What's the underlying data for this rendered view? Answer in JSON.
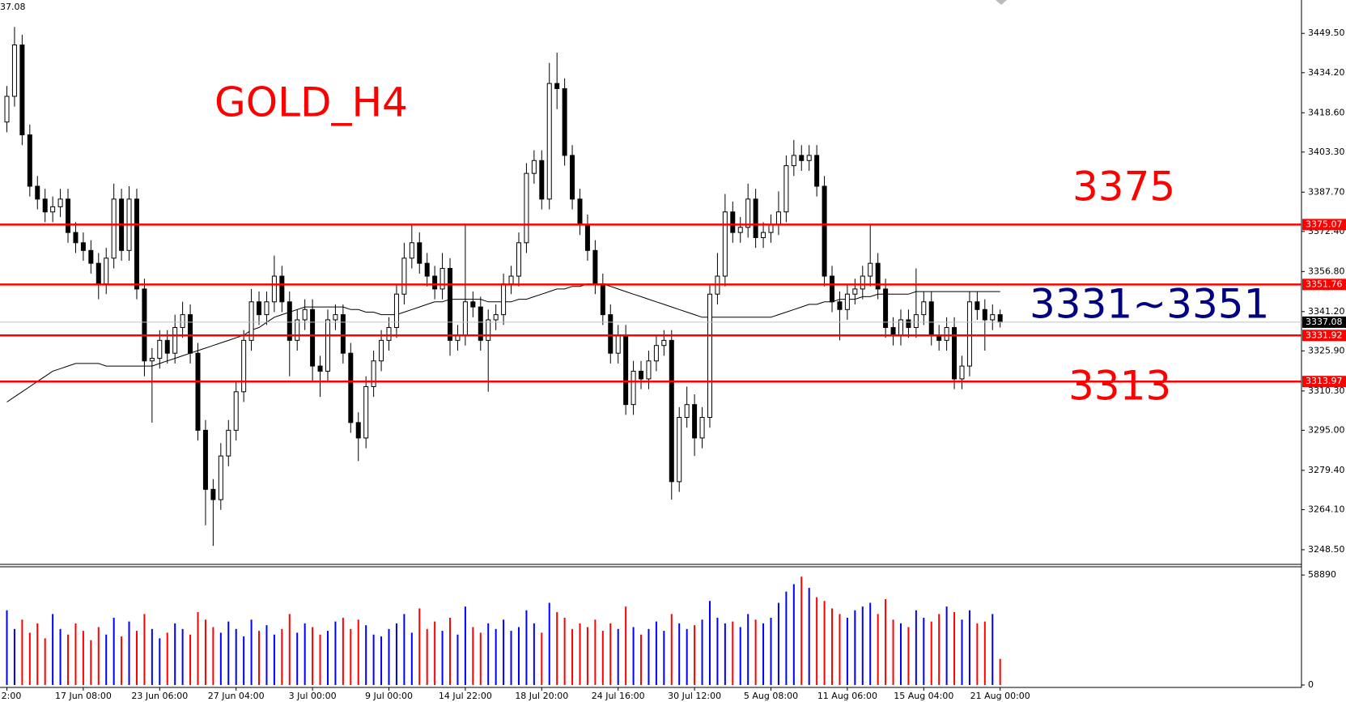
{
  "chart_data": [
    {
      "type": "candlestick",
      "title": "GOLD_H4",
      "corner_label": "37.08",
      "categories": [
        "2:00",
        null,
        null,
        null,
        null,
        null,
        null,
        null,
        null,
        null,
        "17 Jun 08:00",
        null,
        null,
        null,
        null,
        null,
        null,
        null,
        null,
        null,
        "23 Jun 06:00",
        null,
        null,
        null,
        null,
        null,
        null,
        null,
        null,
        null,
        "27 Jun 04:00",
        null,
        null,
        null,
        null,
        null,
        null,
        null,
        null,
        null,
        "3 Jul 00:00",
        null,
        null,
        null,
        null,
        null,
        null,
        null,
        null,
        null,
        "9 Jul 00:00",
        null,
        null,
        null,
        null,
        null,
        null,
        null,
        null,
        null,
        "14 Jul 22:00",
        null,
        null,
        null,
        null,
        null,
        null,
        null,
        null,
        null,
        "18 Jul 20:00",
        null,
        null,
        null,
        null,
        null,
        null,
        null,
        null,
        null,
        "24 Jul 16:00",
        null,
        null,
        null,
        null,
        null,
        null,
        null,
        null,
        null,
        "30 Jul 12:00",
        null,
        null,
        null,
        null,
        null,
        null,
        null,
        null,
        null,
        "5 Aug 08:00",
        null,
        null,
        null,
        null,
        null,
        null,
        null,
        null,
        null,
        "11 Aug 06:00",
        null,
        null,
        null,
        null,
        null,
        null,
        null,
        null,
        null,
        "15 Aug 04:00",
        null,
        null,
        null,
        null,
        null,
        null,
        null,
        null,
        null,
        "21 Aug 00:00"
      ],
      "open": [
        3415,
        3425,
        3445,
        3410,
        3390,
        3385,
        3380,
        3382,
        3385,
        3372,
        3368,
        3365,
        3360,
        3352,
        3362,
        3385,
        3365,
        3385,
        3350,
        3322,
        3323,
        3330,
        3325,
        3335,
        3340,
        3325,
        3295,
        3272,
        3268,
        3285,
        3295,
        3310,
        3330,
        3345,
        3340,
        3345,
        3355,
        3345,
        3330,
        3338,
        3342,
        3320,
        3318,
        3338,
        3340,
        3325,
        3298,
        3292,
        3312,
        3322,
        3330,
        3335,
        3348,
        3362,
        3368,
        3360,
        3355,
        3350,
        3358,
        3330,
        3332,
        3345,
        3343,
        3330,
        3338,
        3340,
        3352,
        3355,
        3368,
        3395,
        3400,
        3385,
        3430,
        3428,
        3402,
        3385,
        3375,
        3365,
        3352,
        3340,
        3325,
        3332,
        3305,
        3318,
        3315,
        3322,
        3328,
        3330,
        3275,
        3300,
        3305,
        3292,
        3300,
        3348,
        3355,
        3380,
        3372,
        3374,
        3385,
        3370,
        3372,
        3375,
        3380,
        3398,
        3402,
        3400,
        3402,
        3390,
        3355,
        3345,
        3342,
        3348,
        3350,
        3355,
        3360,
        3350,
        3335,
        3332,
        3338,
        3335,
        3340,
        3345,
        3332,
        3330,
        3335,
        3315,
        3320,
        3345,
        3342,
        3338,
        3340
      ],
      "high": [
        3429,
        3452,
        3449,
        3414,
        3394,
        3389,
        3386,
        3389,
        3389,
        3376,
        3372,
        3369,
        3364,
        3366,
        3391,
        3389,
        3390,
        3389,
        3354,
        3327,
        3334,
        3334,
        3340,
        3345,
        3344,
        3329,
        3299,
        3276,
        3290,
        3299,
        3314,
        3334,
        3350,
        3349,
        3349,
        3363,
        3359,
        3349,
        3342,
        3346,
        3346,
        3324,
        3342,
        3344,
        3344,
        3329,
        3302,
        3316,
        3326,
        3334,
        3339,
        3352,
        3368,
        3375,
        3372,
        3364,
        3359,
        3364,
        3362,
        3336,
        3375,
        3349,
        3347,
        3342,
        3344,
        3356,
        3359,
        3372,
        3399,
        3404,
        3404,
        3438,
        3442,
        3432,
        3406,
        3389,
        3379,
        3369,
        3356,
        3344,
        3336,
        3336,
        3322,
        3322,
        3326,
        3332,
        3334,
        3334,
        3304,
        3312,
        3309,
        3304,
        3352,
        3364,
        3387,
        3384,
        3378,
        3391,
        3389,
        3376,
        3379,
        3388,
        3402,
        3408,
        3406,
        3406,
        3406,
        3394,
        3359,
        3349,
        3352,
        3354,
        3359,
        3375,
        3364,
        3354,
        3339,
        3342,
        3342,
        3358,
        3349,
        3349,
        3336,
        3339,
        3339,
        3324,
        3349,
        3349,
        3346,
        3344,
        3342
      ],
      "low": [
        3411,
        3421,
        3406,
        3386,
        3381,
        3376,
        3376,
        3378,
        3368,
        3364,
        3361,
        3356,
        3346,
        3348,
        3358,
        3361,
        3361,
        3346,
        3316,
        3298,
        3319,
        3321,
        3321,
        3331,
        3321,
        3291,
        3258,
        3250,
        3264,
        3281,
        3291,
        3306,
        3326,
        3336,
        3336,
        3341,
        3341,
        3316,
        3326,
        3334,
        3314,
        3308,
        3314,
        3334,
        3321,
        3294,
        3283,
        3288,
        3308,
        3318,
        3326,
        3331,
        3344,
        3358,
        3356,
        3351,
        3346,
        3346,
        3324,
        3326,
        3328,
        3339,
        3326,
        3310,
        3334,
        3336,
        3348,
        3351,
        3364,
        3391,
        3381,
        3381,
        3420,
        3398,
        3381,
        3371,
        3361,
        3348,
        3336,
        3321,
        3321,
        3301,
        3301,
        3311,
        3311,
        3318,
        3324,
        3268,
        3271,
        3296,
        3285,
        3288,
        3296,
        3344,
        3351,
        3368,
        3368,
        3370,
        3366,
        3366,
        3368,
        3371,
        3376,
        3394,
        3396,
        3396,
        3386,
        3351,
        3341,
        3330,
        3338,
        3344,
        3346,
        3351,
        3346,
        3331,
        3328,
        3328,
        3331,
        3331,
        3336,
        3328,
        3326,
        3326,
        3311,
        3311,
        3316,
        3338,
        3326,
        3334,
        3335
      ],
      "close": [
        3425,
        3445,
        3410,
        3390,
        3385,
        3380,
        3382,
        3385,
        3372,
        3368,
        3365,
        3360,
        3352,
        3362,
        3385,
        3365,
        3385,
        3350,
        3322,
        3323,
        3330,
        3325,
        3335,
        3340,
        3325,
        3295,
        3272,
        3268,
        3285,
        3295,
        3310,
        3330,
        3345,
        3340,
        3345,
        3355,
        3345,
        3330,
        3338,
        3342,
        3320,
        3318,
        3338,
        3340,
        3325,
        3298,
        3292,
        3312,
        3322,
        3330,
        3335,
        3348,
        3362,
        3368,
        3360,
        3355,
        3350,
        3358,
        3330,
        3332,
        3345,
        3343,
        3330,
        3338,
        3340,
        3352,
        3355,
        3368,
        3395,
        3400,
        3385,
        3430,
        3428,
        3402,
        3385,
        3375,
        3365,
        3352,
        3340,
        3325,
        3332,
        3305,
        3318,
        3315,
        3322,
        3328,
        3330,
        3275,
        3300,
        3305,
        3292,
        3300,
        3348,
        3355,
        3380,
        3372,
        3374,
        3385,
        3370,
        3372,
        3375,
        3380,
        3398,
        3402,
        3400,
        3402,
        3390,
        3355,
        3345,
        3342,
        3348,
        3350,
        3355,
        3360,
        3350,
        3335,
        3332,
        3338,
        3335,
        3340,
        3345,
        3332,
        3330,
        3335,
        3315,
        3320,
        3345,
        3342,
        3338,
        3340,
        3337.08
      ],
      "up_color": "#ffffff",
      "down_color": "#000000",
      "candle_outline": "#000000",
      "moving_average": {
        "color": "#000000",
        "values": [
          3306,
          3308,
          3310,
          3312,
          3314,
          3316,
          3318,
          3319,
          3320,
          3321,
          3321,
          3321,
          3321,
          3320,
          3320,
          3320,
          3320,
          3320,
          3320,
          3320,
          3321,
          3322,
          3323,
          3324,
          3325,
          3326,
          3327,
          3328,
          3329,
          3330,
          3331,
          3332,
          3334,
          3335,
          3337,
          3339,
          3340,
          3341,
          3342,
          3343,
          3343,
          3343,
          3343,
          3343,
          3343,
          3342,
          3342,
          3341,
          3341,
          3340,
          3340,
          3340,
          3341,
          3342,
          3343,
          3344,
          3345,
          3345,
          3346,
          3346,
          3346,
          3346,
          3346,
          3345,
          3345,
          3345,
          3345,
          3346,
          3346,
          3347,
          3348,
          3349,
          3350,
          3350,
          3351,
          3351,
          3352,
          3352,
          3352,
          3351,
          3350,
          3349,
          3348,
          3347,
          3346,
          3345,
          3344,
          3343,
          3342,
          3341,
          3340,
          3339,
          3339,
          3339,
          3339,
          3339,
          3339,
          3339,
          3339,
          3339,
          3339,
          3340,
          3341,
          3342,
          3343,
          3344,
          3344,
          3345,
          3345,
          3346,
          3346,
          3346,
          3347,
          3347,
          3348,
          3348,
          3348,
          3348,
          3348,
          3349,
          3349,
          3349,
          3349,
          3349,
          3349,
          3349,
          3349,
          3349,
          3349,
          3349,
          3349
        ]
      },
      "levels": [
        3375.07,
        3351.76,
        3331.92,
        3313.97
      ],
      "level_color": "#ff0000",
      "last_price": 3337.08,
      "last_price_color": "#000000",
      "annotations": [
        {
          "text": "3375",
          "color": "#ff0000"
        },
        {
          "text": "3331~3351",
          "color": "#000080"
        },
        {
          "text": "3313",
          "color": "#ff0000"
        }
      ],
      "title_color": "#ff0000",
      "ylim": [
        3242.8,
        3462.5
      ],
      "yticks": [
        {
          "value": 3449.5,
          "label": "3449.50"
        },
        {
          "value": 3434.2,
          "label": "3434.20"
        },
        {
          "value": 3418.6,
          "label": "3418.60"
        },
        {
          "value": 3403.3,
          "label": "3403.30"
        },
        {
          "value": 3387.7,
          "label": "3387.70"
        },
        {
          "value": 3372.4,
          "label": "3372.40"
        },
        {
          "value": 3356.8,
          "label": "3356.80"
        },
        {
          "value": 3341.2,
          "label": "3341.20"
        },
        {
          "value": 3325.9,
          "label": "3325.90"
        },
        {
          "value": 3310.3,
          "label": "3310.30"
        },
        {
          "value": 3295,
          "label": "3295.00"
        },
        {
          "value": 3279.4,
          "label": "3279.40"
        },
        {
          "value": 3264.1,
          "label": "3264.10"
        },
        {
          "value": 3248.5,
          "label": "3248.50"
        }
      ]
    },
    {
      "type": "bar",
      "values": [
        40000,
        30000,
        35000,
        28000,
        33000,
        25000,
        38000,
        30000,
        27000,
        33000,
        29000,
        24000,
        31000,
        27000,
        36000,
        26000,
        34000,
        29000,
        38000,
        30000,
        25000,
        28000,
        33000,
        30000,
        27000,
        39000,
        35000,
        31000,
        28000,
        34000,
        30000,
        26000,
        35000,
        29000,
        32000,
        27000,
        30000,
        38000,
        28000,
        33000,
        31000,
        27000,
        29000,
        34000,
        36000,
        30000,
        35000,
        32000,
        27000,
        26000,
        30000,
        33000,
        38000,
        28000,
        41000,
        30000,
        34000,
        29000,
        36000,
        27000,
        42000,
        31000,
        28000,
        33000,
        30000,
        35000,
        29000,
        31000,
        40000,
        33000,
        28000,
        44000,
        39000,
        36000,
        30000,
        33000,
        31000,
        35000,
        29000,
        33000,
        30000,
        42000,
        31000,
        27000,
        30000,
        34000,
        29000,
        38000,
        33000,
        30000,
        32000,
        35000,
        45000,
        36000,
        33000,
        34000,
        31000,
        38000,
        35000,
        33000,
        36000,
        44000,
        50000,
        54000,
        58000,
        52000,
        47000,
        45000,
        41000,
        38000,
        36000,
        40000,
        42000,
        44000,
        38000,
        46000,
        35000,
        33000,
        31000,
        40000,
        36000,
        34000,
        38000,
        42000,
        39000,
        35000,
        40000,
        33000,
        34000,
        38000,
        14000
      ],
      "up_color": "#0000ff",
      "down_color": "#ff0000",
      "ylim": [
        0,
        62000
      ],
      "yticks": [
        0,
        58890
      ]
    }
  ]
}
